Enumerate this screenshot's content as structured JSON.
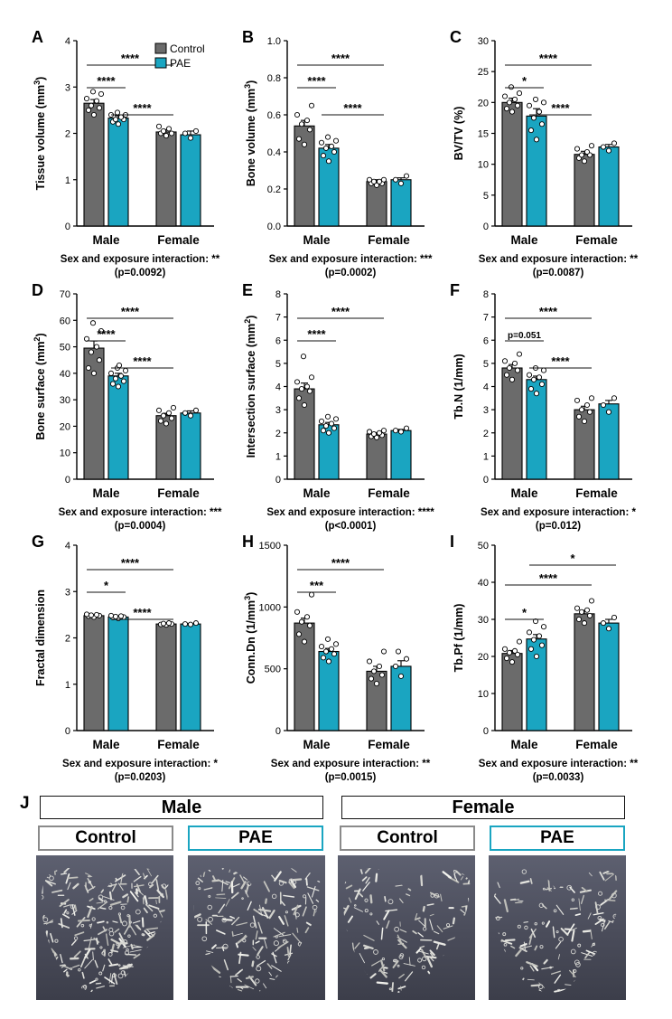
{
  "colors": {
    "control": "#6b6b6b",
    "pae": "#1aa5c1",
    "sig": "#111111"
  },
  "legend": {
    "control": "Control",
    "pae": "PAE"
  },
  "chart_data": [
    {
      "type": "bar",
      "panel": "A",
      "ylabel": "Tissue volume (mm³)",
      "ylim": [
        0,
        4
      ],
      "yticks": [
        0,
        1,
        2,
        3,
        4
      ],
      "tick_fmt": 0,
      "categories": [
        "Male",
        "Female"
      ],
      "series": [
        {
          "name": "Control",
          "values": [
            2.65,
            2.03
          ],
          "err": [
            0.08,
            0.05
          ]
        },
        {
          "name": "PAE",
          "values": [
            2.33,
            1.97
          ],
          "err": [
            0.05,
            0.08
          ]
        }
      ],
      "points": [
        [
          2.4,
          2.5,
          2.55,
          2.6,
          2.7,
          2.75,
          2.85,
          2.9
        ],
        [
          2.2,
          2.25,
          2.3,
          2.3,
          2.35,
          2.4,
          2.4,
          2.45
        ],
        [
          1.95,
          2.0,
          2.0,
          2.05,
          2.1,
          2.15
        ],
        [
          1.9,
          2.0,
          2.05
        ]
      ],
      "sig": [
        {
          "pair": [
            0,
            1
          ],
          "label": "****"
        },
        {
          "pair": [
            0,
            2
          ],
          "label": "****"
        },
        {
          "pair": [
            1,
            2
          ],
          "label": "****"
        }
      ],
      "interaction": "Sex and exposure interaction: **",
      "pvalue": "(p=0.0092)"
    },
    {
      "type": "bar",
      "panel": "B",
      "ylabel": "Bone volume (mm³)",
      "ylim": [
        0,
        1.0
      ],
      "yticks": [
        0,
        0.2,
        0.4,
        0.6,
        0.8,
        1.0
      ],
      "tick_fmt": 1,
      "categories": [
        "Male",
        "Female"
      ],
      "series": [
        {
          "name": "Control",
          "values": [
            0.54,
            0.24
          ],
          "err": [
            0.03,
            0.01
          ]
        },
        {
          "name": "PAE",
          "values": [
            0.42,
            0.25
          ],
          "err": [
            0.02,
            0.01
          ]
        }
      ],
      "points": [
        [
          0.44,
          0.47,
          0.52,
          0.55,
          0.57,
          0.6,
          0.65
        ],
        [
          0.35,
          0.38,
          0.4,
          0.42,
          0.43,
          0.45,
          0.46,
          0.48
        ],
        [
          0.22,
          0.23,
          0.23,
          0.24,
          0.24,
          0.25,
          0.25
        ],
        [
          0.23,
          0.25,
          0.27
        ]
      ],
      "sig": [
        {
          "pair": [
            0,
            1
          ],
          "label": "****"
        },
        {
          "pair": [
            0,
            2
          ],
          "label": "****"
        },
        {
          "pair": [
            1,
            2
          ],
          "label": "****"
        }
      ],
      "interaction": "Sex and exposure interaction: ***",
      "pvalue": "(p=0.0002)"
    },
    {
      "type": "bar",
      "panel": "C",
      "ylabel": "BV/TV (%)",
      "ylim": [
        0,
        30
      ],
      "yticks": [
        0,
        5,
        10,
        15,
        20,
        25,
        30
      ],
      "tick_fmt": 0,
      "categories": [
        "Male",
        "Female"
      ],
      "series": [
        {
          "name": "Control",
          "values": [
            20.0,
            11.6
          ],
          "err": [
            0.7,
            0.5
          ]
        },
        {
          "name": "PAE",
          "values": [
            17.8,
            12.8
          ],
          "err": [
            1.2,
            0.4
          ]
        }
      ],
      "points": [
        [
          18.5,
          19,
          19.5,
          20,
          20.5,
          21,
          21.5,
          22.5
        ],
        [
          14,
          15.5,
          16.5,
          17.5,
          18.5,
          19.5,
          20,
          20.5
        ],
        [
          10.5,
          11,
          11.5,
          11.5,
          12,
          12.5,
          13
        ],
        [
          12.2,
          12.8,
          13.4
        ]
      ],
      "sig": [
        {
          "pair": [
            0,
            1
          ],
          "label": "*"
        },
        {
          "pair": [
            0,
            2
          ],
          "label": "****"
        },
        {
          "pair": [
            1,
            2
          ],
          "label": "****"
        }
      ],
      "interaction": "Sex and exposure interaction: **",
      "pvalue": "(p=0.0087)"
    },
    {
      "type": "bar",
      "panel": "D",
      "ylabel": "Bone surface (mm²)",
      "ylim": [
        0,
        70
      ],
      "yticks": [
        0,
        10,
        20,
        30,
        40,
        50,
        60,
        70
      ],
      "tick_fmt": 0,
      "categories": [
        "Male",
        "Female"
      ],
      "series": [
        {
          "name": "Control",
          "values": [
            49.5,
            24.0
          ],
          "err": [
            2.7,
            0.9
          ]
        },
        {
          "name": "PAE",
          "values": [
            39.0,
            25.0
          ],
          "err": [
            1.0,
            0.8
          ]
        }
      ],
      "points": [
        [
          40,
          42,
          45,
          48,
          50,
          53,
          56,
          59
        ],
        [
          35,
          36,
          37,
          38,
          39,
          40,
          41,
          42,
          43
        ],
        [
          21,
          22,
          23,
          24,
          25,
          26,
          27
        ],
        [
          24,
          25,
          26
        ]
      ],
      "sig": [
        {
          "pair": [
            0,
            1
          ],
          "label": "****"
        },
        {
          "pair": [
            0,
            2
          ],
          "label": "****"
        },
        {
          "pair": [
            1,
            2
          ],
          "label": "****"
        }
      ],
      "interaction": "Sex and exposure interaction: ***",
      "pvalue": "(p=0.0004)"
    },
    {
      "type": "bar",
      "panel": "E",
      "ylabel": "Intersection surface (mm²)",
      "ylim": [
        0,
        8
      ],
      "yticks": [
        0,
        1,
        2,
        3,
        4,
        5,
        6,
        7,
        8
      ],
      "tick_fmt": 0,
      "categories": [
        "Male",
        "Female"
      ],
      "series": [
        {
          "name": "Control",
          "values": [
            3.9,
            1.95
          ],
          "err": [
            0.25,
            0.06
          ]
        },
        {
          "name": "PAE",
          "values": [
            2.35,
            2.1
          ],
          "err": [
            0.1,
            0.05
          ]
        }
      ],
      "points": [
        [
          3.2,
          3.5,
          3.8,
          3.9,
          4.0,
          4.2,
          4.4,
          5.3
        ],
        [
          2.0,
          2.1,
          2.2,
          2.3,
          2.4,
          2.5,
          2.6,
          2.7
        ],
        [
          1.8,
          1.85,
          1.9,
          1.95,
          2.0,
          2.05,
          2.1
        ],
        [
          2.05,
          2.1,
          2.2
        ]
      ],
      "sig": [
        {
          "pair": [
            0,
            1
          ],
          "label": "****"
        },
        {
          "pair": [
            0,
            2
          ],
          "label": "****"
        }
      ],
      "interaction": "Sex and exposure interaction: ****",
      "pvalue": "(p<0.0001)"
    },
    {
      "type": "bar",
      "panel": "F",
      "ylabel": "Tb.N (1/mm)",
      "ylim": [
        0,
        8
      ],
      "yticks": [
        0,
        1,
        2,
        3,
        4,
        5,
        6,
        7,
        8
      ],
      "tick_fmt": 0,
      "categories": [
        "Male",
        "Female"
      ],
      "series": [
        {
          "name": "Control",
          "values": [
            4.8,
            3.0
          ],
          "err": [
            0.15,
            0.15
          ]
        },
        {
          "name": "PAE",
          "values": [
            4.3,
            3.25
          ],
          "err": [
            0.15,
            0.15
          ]
        }
      ],
      "points": [
        [
          4.3,
          4.5,
          4.7,
          4.8,
          5.0,
          5.1,
          5.4
        ],
        [
          3.7,
          3.9,
          4.1,
          4.3,
          4.4,
          4.5,
          4.7,
          4.8
        ],
        [
          2.5,
          2.7,
          2.9,
          3.0,
          3.2,
          3.4,
          3.5
        ],
        [
          2.9,
          3.2,
          3.5
        ]
      ],
      "sig": [
        {
          "pair": [
            0,
            1
          ],
          "label": "p=0.051",
          "italic_p": true
        },
        {
          "pair": [
            0,
            2
          ],
          "label": "****"
        },
        {
          "pair": [
            1,
            2
          ],
          "label": "****"
        }
      ],
      "interaction": "Sex and exposure interaction: *",
      "pvalue": "(p=0.012)"
    },
    {
      "type": "bar",
      "panel": "G",
      "ylabel": "Fractal dimension",
      "ylim": [
        0,
        4
      ],
      "yticks": [
        0,
        1,
        2,
        3,
        4
      ],
      "tick_fmt": 0,
      "categories": [
        "Male",
        "Female"
      ],
      "series": [
        {
          "name": "Control",
          "values": [
            2.48,
            2.3
          ],
          "err": [
            0.01,
            0.01
          ]
        },
        {
          "name": "PAE",
          "values": [
            2.45,
            2.3
          ],
          "err": [
            0.01,
            0.01
          ]
        }
      ],
      "points": [
        [
          2.45,
          2.47,
          2.48,
          2.49,
          2.5,
          2.51
        ],
        [
          2.42,
          2.44,
          2.45,
          2.46,
          2.47,
          2.48
        ],
        [
          2.28,
          2.29,
          2.3,
          2.31,
          2.32
        ],
        [
          2.29,
          2.3,
          2.32
        ]
      ],
      "sig": [
        {
          "pair": [
            0,
            1
          ],
          "label": "*"
        },
        {
          "pair": [
            0,
            2
          ],
          "label": "****"
        },
        {
          "pair": [
            1,
            2
          ],
          "label": "****"
        }
      ],
      "interaction": "Sex and exposure interaction: *",
      "pvalue": "(p=0.0203)"
    },
    {
      "type": "bar",
      "panel": "H",
      "ylabel": "Conn.Dn (1/mm³)",
      "ylim": [
        0,
        1500
      ],
      "yticks": [
        0,
        500,
        1000,
        1500
      ],
      "tick_fmt": 0,
      "categories": [
        "Male",
        "Female"
      ],
      "series": [
        {
          "name": "Control",
          "values": [
            870,
            480
          ],
          "err": [
            40,
            40
          ]
        },
        {
          "name": "PAE",
          "values": [
            640,
            520
          ],
          "err": [
            25,
            45
          ]
        }
      ],
      "points": [
        [
          720,
          780,
          850,
          880,
          920,
          960,
          1100
        ],
        [
          560,
          590,
          620,
          640,
          660,
          680,
          700,
          740
        ],
        [
          380,
          420,
          450,
          480,
          520,
          560,
          640
        ],
        [
          440,
          520,
          580,
          640
        ]
      ],
      "sig": [
        {
          "pair": [
            0,
            1
          ],
          "label": "***"
        },
        {
          "pair": [
            0,
            2
          ],
          "label": "****"
        }
      ],
      "interaction": "Sex and exposure interaction: **",
      "pvalue": "(p=0.0015)"
    },
    {
      "type": "bar",
      "panel": "I",
      "ylabel": "Tb.Pf (1/mm)",
      "ylim": [
        0,
        50
      ],
      "yticks": [
        0,
        10,
        20,
        30,
        40,
        50
      ],
      "tick_fmt": 0,
      "categories": [
        "Male",
        "Female"
      ],
      "series": [
        {
          "name": "Control",
          "values": [
            20.8,
            31.5
          ],
          "err": [
            0.8,
            0.9
          ]
        },
        {
          "name": "PAE",
          "values": [
            24.7,
            29.0
          ],
          "err": [
            1.2,
            1.0
          ]
        }
      ],
      "points": [
        [
          18.5,
          19.5,
          20.5,
          21,
          21.5,
          22,
          24
        ],
        [
          20,
          22,
          23,
          24.5,
          25.5,
          26.5,
          28,
          29.5
        ],
        [
          29,
          30,
          31,
          32,
          32.5,
          33,
          35
        ],
        [
          27.5,
          29,
          30.5
        ]
      ],
      "sig": [
        {
          "pair": [
            0,
            1
          ],
          "label": "*"
        },
        {
          "pair": [
            0,
            2
          ],
          "label": "****"
        },
        {
          "pair": [
            1,
            3
          ],
          "label": "*"
        }
      ],
      "interaction": "Sex and exposure interaction: **",
      "pvalue": "(p=0.0033)"
    }
  ],
  "microct": {
    "panel": "J",
    "groups": [
      "Male",
      "Female"
    ],
    "conditions": [
      "Control",
      "PAE",
      "Control",
      "PAE"
    ]
  }
}
